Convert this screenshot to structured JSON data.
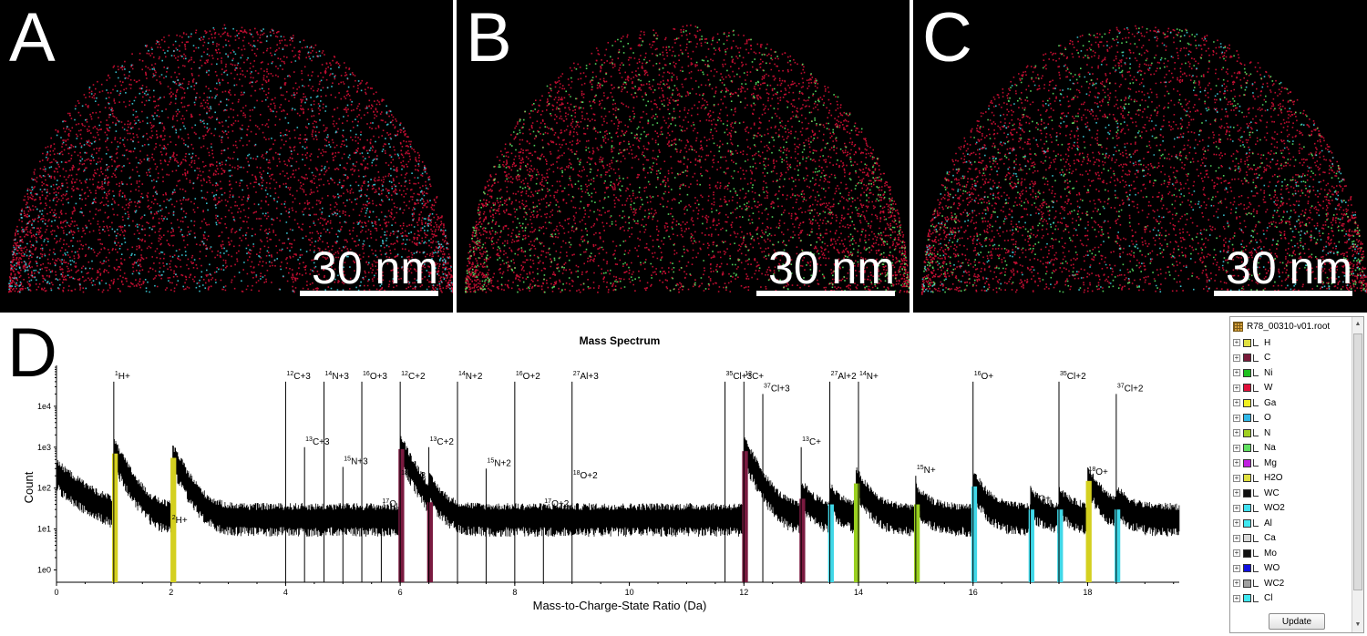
{
  "panels": [
    {
      "letter": "A",
      "scale_label": "30 nm",
      "colors": [
        "#e0103a",
        "#40d8e8"
      ]
    },
    {
      "letter": "B",
      "scale_label": "30 nm",
      "colors": [
        "#e0103a",
        "#5ef06a"
      ]
    },
    {
      "letter": "C",
      "scale_label": "30 nm",
      "colors": [
        "#e0103a",
        "#5ef06a",
        "#40d8e8"
      ]
    }
  ],
  "spectrum_panel_letter": "D",
  "chart_data": {
    "type": "bar",
    "title": "Mass Spectrum",
    "xlabel": "Mass-to-Charge-State Ratio (Da)",
    "ylabel": "Count",
    "xlim": [
      0,
      19.6
    ],
    "ylim": [
      0.5,
      100000
    ],
    "y_scale": "log",
    "x_ticks": [
      0,
      2,
      4,
      6,
      8,
      10,
      12,
      14,
      16,
      18
    ],
    "y_ticks": [
      {
        "value": 1,
        "label": "1e0"
      },
      {
        "value": 10,
        "label": "1e1"
      },
      {
        "value": 100,
        "label": "1e2"
      },
      {
        "value": 1000,
        "label": "1e3"
      },
      {
        "value": 10000,
        "label": "1e4"
      }
    ],
    "ranged_peaks": [
      {
        "x": 1.0,
        "count": 700,
        "color": "#d4d020"
      },
      {
        "x": 2.02,
        "count": 550,
        "color": "#d4d020"
      },
      {
        "x": 6.0,
        "count": 900,
        "color": "#7a1a40"
      },
      {
        "x": 6.5,
        "count": 45,
        "color": "#7a1a40"
      },
      {
        "x": 12.0,
        "count": 800,
        "color": "#7a1a40"
      },
      {
        "x": 13.0,
        "count": 55,
        "color": "#7a1a40"
      },
      {
        "x": 13.5,
        "count": 40,
        "color": "#40d8e8"
      },
      {
        "x": 13.95,
        "count": 130,
        "color": "#9ad020"
      },
      {
        "x": 15.0,
        "count": 40,
        "color": "#9ad020"
      },
      {
        "x": 16.0,
        "count": 110,
        "color": "#40d8e8"
      },
      {
        "x": 17.0,
        "count": 30,
        "color": "#40d8e8"
      },
      {
        "x": 17.5,
        "count": 30,
        "color": "#40d8e8"
      },
      {
        "x": 18.0,
        "count": 150,
        "color": "#d4d020"
      },
      {
        "x": 18.5,
        "count": 30,
        "color": "#40d8e8"
      }
    ],
    "annotations": [
      {
        "x": 1.0,
        "label_x": 1.0,
        "sup": "1",
        "text": "H+",
        "y": 40000,
        "line_top": 40000
      },
      {
        "x": 2.0,
        "label_x": 2.0,
        "sup": "2",
        "text": "H+",
        "y": 12,
        "line_top": null
      },
      {
        "x": 4.0,
        "label_x": 4.0,
        "sup": "12",
        "text": "C+3",
        "y": 40000,
        "line_top": 40000
      },
      {
        "x": 4.33,
        "label_x": 4.33,
        "sup": "13",
        "text": "C+3",
        "y": 1000,
        "line_top": 1000
      },
      {
        "x": 4.67,
        "label_x": 4.67,
        "sup": "14",
        "text": "N+3",
        "y": 40000,
        "line_top": 40000
      },
      {
        "x": 5.0,
        "label_x": 5.0,
        "sup": "15",
        "text": "N+3",
        "y": 330,
        "line_top": 330
      },
      {
        "x": 5.33,
        "label_x": 5.33,
        "sup": "16",
        "text": "O+3",
        "y": 40000,
        "line_top": 40000
      },
      {
        "x": 5.67,
        "label_x": 5.67,
        "sup": "17",
        "text": "O",
        "y": 30,
        "line_top": 30
      },
      {
        "x": 6.0,
        "label_x": 6.0,
        "sup": "12",
        "text": "C+2",
        "y": 40000,
        "line_top": 40000
      },
      {
        "x": 6.0,
        "label_x": 6.0,
        "sup": "18",
        "text": "O+3",
        "y": 150,
        "line_top": null
      },
      {
        "x": 6.5,
        "label_x": 6.5,
        "sup": "13",
        "text": "C+2",
        "y": 1000,
        "line_top": 1000
      },
      {
        "x": 7.0,
        "label_x": 7.0,
        "sup": "14",
        "text": "N+2",
        "y": 40000,
        "line_top": 40000
      },
      {
        "x": 7.5,
        "label_x": 7.5,
        "sup": "15",
        "text": "N+2",
        "y": 300,
        "line_top": 300
      },
      {
        "x": 8.0,
        "label_x": 8.0,
        "sup": "16",
        "text": "O+2",
        "y": 40000,
        "line_top": 40000
      },
      {
        "x": 8.5,
        "label_x": 8.5,
        "sup": "17",
        "text": "O+2",
        "y": 30,
        "line_top": 30
      },
      {
        "x": 9.0,
        "label_x": 9.0,
        "sup": "18",
        "text": "O+2",
        "y": 150,
        "line_top": null
      },
      {
        "x": 9.0,
        "label_x": 9.0,
        "sup": "27",
        "text": "Al+3",
        "y": 40000,
        "line_top": 40000
      },
      {
        "x": 11.67,
        "label_x": 11.67,
        "sup": "35",
        "text": "Cl+3",
        "y": 40000,
        "line_top": 40000
      },
      {
        "x": 12.0,
        "label_x": 12.0,
        "sup": "12",
        "text": "C+",
        "y": 40000,
        "line_top": 40000
      },
      {
        "x": 12.33,
        "label_x": 12.33,
        "sup": "37",
        "text": "Cl+3",
        "y": 20000,
        "line_top": 20000
      },
      {
        "x": 13.0,
        "label_x": 13.0,
        "sup": "13",
        "text": "C+",
        "y": 1000,
        "line_top": 1000
      },
      {
        "x": 13.5,
        "label_x": 13.5,
        "sup": "27",
        "text": "Al+2",
        "y": 40000,
        "line_top": 40000
      },
      {
        "x": 14.0,
        "label_x": 14.0,
        "sup": "14",
        "text": "N+",
        "y": 40000,
        "line_top": 40000
      },
      {
        "x": 15.0,
        "label_x": 15.0,
        "sup": "15",
        "text": "N+",
        "y": 200,
        "line_top": 200
      },
      {
        "x": 16.0,
        "label_x": 16.0,
        "sup": "16",
        "text": "O+",
        "y": 40000,
        "line_top": 40000
      },
      {
        "x": 17.0,
        "label_x": 17.0,
        "sup": "17",
        "text": "O+",
        "y": 40,
        "line_top": 40
      },
      {
        "x": 17.5,
        "label_x": 17.5,
        "sup": "35",
        "text": "Cl+2",
        "y": 40000,
        "line_top": 40000
      },
      {
        "x": 18.0,
        "label_x": 18.0,
        "sup": "18",
        "text": "O+",
        "y": 180,
        "line_top": null
      },
      {
        "x": 18.5,
        "label_x": 18.5,
        "sup": "37",
        "text": "Cl+2",
        "y": 20000,
        "line_top": 20000
      }
    ]
  },
  "range_tree": {
    "root_label": "R78_00310-v01.root",
    "items": [
      {
        "label": "H",
        "color": "#e0e040"
      },
      {
        "label": "C",
        "color": "#7a1a3a"
      },
      {
        "label": "Ni",
        "color": "#20c020"
      },
      {
        "label": "W",
        "color": "#e0103a"
      },
      {
        "label": "Ga",
        "color": "#f0f020"
      },
      {
        "label": "O",
        "color": "#30b8e8"
      },
      {
        "label": "N",
        "color": "#a0d020"
      },
      {
        "label": "Na",
        "color": "#60e060"
      },
      {
        "label": "Mg",
        "color": "#c020e0"
      },
      {
        "label": "H2O",
        "color": "#e0e040"
      },
      {
        "label": "WC",
        "color": "#101010"
      },
      {
        "label": "WO2",
        "color": "#40e0f0"
      },
      {
        "label": "Al",
        "color": "#40e8f0"
      },
      {
        "label": "Ca",
        "color": "#d8d8d8"
      },
      {
        "label": "Mo",
        "color": "#101010"
      },
      {
        "label": "WO",
        "color": "#1010e0"
      },
      {
        "label": "WC2",
        "color": "#a0a0a0"
      },
      {
        "label": "Cl",
        "color": "#40e8f0"
      }
    ],
    "update_label": "Update"
  }
}
